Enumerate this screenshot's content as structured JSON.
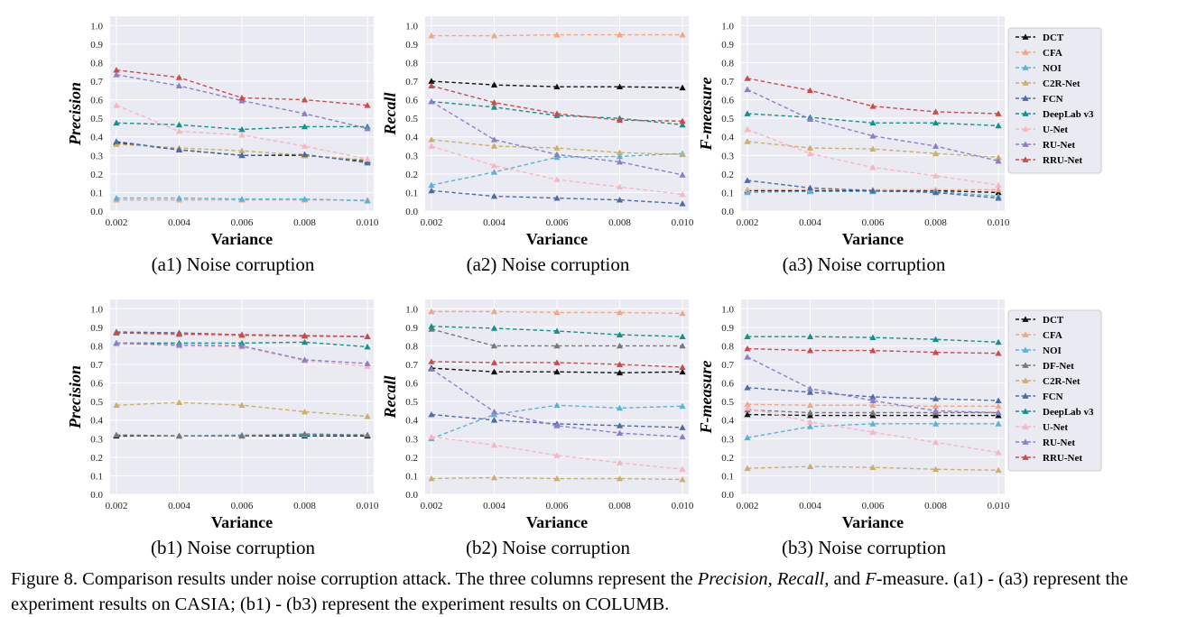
{
  "caption": {
    "prefix": "Figure 8. Comparison results under noise corruption attack. The three columns represent the ",
    "m1": "Precision",
    "sep1": ", ",
    "m2": "Recall",
    "sep2": ", and ",
    "m3": "F",
    "suffix": "-measure. (a1) - (a3) represent the experiment results on CASIA; (b1) - (b3) represent the experiment results on COLUMB."
  },
  "colors": {
    "DCT": "#111111",
    "CFA": "#f4a582",
    "NOI": "#5ab4d6",
    "DF-Net": "#777777",
    "C2R-Net": "#c9b06b",
    "FCN": "#4a6da7",
    "DeepLab v3": "#14928a",
    "U-Net": "#f7b6c2",
    "RU-Net": "#8b7fc9",
    "RRU-Net": "#cc4a4a",
    "panel_bg": "#eaeaf2",
    "grid": "#ffffff"
  },
  "chart_data": [
    {
      "id": "a1",
      "type": "line",
      "subcaption": "(a1) Noise corruption",
      "xlabel": "Variance",
      "ylabel": "Precision",
      "categories": [
        "0.002",
        "0.004",
        "0.006",
        "0.008",
        "0.010"
      ],
      "x": [
        0.002,
        0.004,
        0.006,
        0.008,
        0.01
      ],
      "xlim": [
        0.0018,
        0.0102
      ],
      "ylim": [
        0,
        1.05
      ],
      "yticks": [
        "0.0",
        "0.1",
        "0.2",
        "0.3",
        "0.4",
        "0.5",
        "0.6",
        "0.7",
        "0.8",
        "0.9",
        "1.0"
      ],
      "series": [
        {
          "name": "DCT",
          "values": [
            0.37,
            0.33,
            0.3,
            0.3,
            0.27
          ]
        },
        {
          "name": "CFA",
          "values": [
            0.06,
            0.06,
            0.06,
            0.06,
            0.06
          ]
        },
        {
          "name": "NOI",
          "values": [
            0.07,
            0.07,
            0.065,
            0.065,
            0.055
          ]
        },
        {
          "name": "C2R-Net",
          "values": [
            0.36,
            0.34,
            0.325,
            0.3,
            0.275
          ]
        },
        {
          "name": "FCN",
          "values": [
            0.375,
            0.33,
            0.3,
            0.305,
            0.26
          ]
        },
        {
          "name": "DeepLab v3",
          "values": [
            0.475,
            0.465,
            0.44,
            0.455,
            0.455
          ]
        },
        {
          "name": "U-Net",
          "values": [
            0.57,
            0.43,
            0.41,
            0.35,
            0.28
          ]
        },
        {
          "name": "RU-Net",
          "values": [
            0.735,
            0.675,
            0.595,
            0.525,
            0.445
          ]
        },
        {
          "name": "RRU-Net",
          "values": [
            0.76,
            0.72,
            0.61,
            0.6,
            0.57
          ]
        }
      ]
    },
    {
      "id": "a2",
      "type": "line",
      "subcaption": "(a2) Noise corruption",
      "xlabel": "Variance",
      "ylabel": "Recall",
      "categories": [
        "0.002",
        "0.004",
        "0.006",
        "0.008",
        "0.010"
      ],
      "x": [
        0.002,
        0.004,
        0.006,
        0.008,
        0.01
      ],
      "xlim": [
        0.0018,
        0.0102
      ],
      "ylim": [
        0,
        1.05
      ],
      "yticks": [
        "0.0",
        "0.1",
        "0.2",
        "0.3",
        "0.4",
        "0.5",
        "0.6",
        "0.7",
        "0.8",
        "0.9",
        "1.0"
      ],
      "series": [
        {
          "name": "DCT",
          "values": [
            0.7,
            0.68,
            0.67,
            0.67,
            0.665
          ]
        },
        {
          "name": "CFA",
          "values": [
            0.945,
            0.945,
            0.95,
            0.95,
            0.95
          ]
        },
        {
          "name": "NOI",
          "values": [
            0.14,
            0.21,
            0.29,
            0.295,
            0.31
          ]
        },
        {
          "name": "C2R-Net",
          "values": [
            0.385,
            0.35,
            0.34,
            0.315,
            0.305
          ]
        },
        {
          "name": "FCN",
          "values": [
            0.11,
            0.08,
            0.07,
            0.06,
            0.04
          ]
        },
        {
          "name": "DeepLab v3",
          "values": [
            0.59,
            0.56,
            0.515,
            0.5,
            0.465
          ]
        },
        {
          "name": "U-Net",
          "values": [
            0.35,
            0.245,
            0.17,
            0.13,
            0.09
          ]
        },
        {
          "name": "RU-Net",
          "values": [
            0.59,
            0.385,
            0.305,
            0.265,
            0.195
          ]
        },
        {
          "name": "RRU-Net",
          "values": [
            0.675,
            0.585,
            0.525,
            0.49,
            0.485
          ]
        }
      ]
    },
    {
      "id": "a3",
      "type": "line",
      "subcaption": "(a3) Noise corruption",
      "xlabel": "Variance",
      "ylabel": "F-measure",
      "categories": [
        "0.002",
        "0.004",
        "0.006",
        "0.008",
        "0.010"
      ],
      "x": [
        0.002,
        0.004,
        0.006,
        0.008,
        0.01
      ],
      "xlim": [
        0.0018,
        0.0102
      ],
      "ylim": [
        0,
        1.05
      ],
      "yticks": [
        "0.0",
        "0.1",
        "0.2",
        "0.3",
        "0.4",
        "0.5",
        "0.6",
        "0.7",
        "0.8",
        "0.9",
        "1.0"
      ],
      "legend": [
        "DCT",
        "CFA",
        "NOI",
        "C2R-Net",
        "FCN",
        "DeepLab v3",
        "U-Net",
        "RU-Net",
        "RRU-Net"
      ],
      "series": [
        {
          "name": "DCT",
          "values": [
            0.11,
            0.11,
            0.11,
            0.11,
            0.1
          ]
        },
        {
          "name": "CFA",
          "values": [
            0.115,
            0.115,
            0.115,
            0.115,
            0.115
          ]
        },
        {
          "name": "NOI",
          "values": [
            0.1,
            0.105,
            0.105,
            0.105,
            0.08
          ]
        },
        {
          "name": "C2R-Net",
          "values": [
            0.375,
            0.34,
            0.335,
            0.31,
            0.29
          ]
        },
        {
          "name": "FCN",
          "values": [
            0.165,
            0.125,
            0.11,
            0.1,
            0.07
          ]
        },
        {
          "name": "DeepLab v3",
          "values": [
            0.525,
            0.505,
            0.475,
            0.475,
            0.46
          ]
        },
        {
          "name": "U-Net",
          "values": [
            0.44,
            0.31,
            0.235,
            0.19,
            0.14
          ]
        },
        {
          "name": "RU-Net",
          "values": [
            0.655,
            0.495,
            0.405,
            0.35,
            0.27
          ]
        },
        {
          "name": "RRU-Net",
          "values": [
            0.715,
            0.65,
            0.565,
            0.535,
            0.525
          ]
        }
      ]
    },
    {
      "id": "b1",
      "type": "line",
      "subcaption": "(b1) Noise corruption",
      "xlabel": "Variance",
      "ylabel": "Precision",
      "categories": [
        "0.002",
        "0.004",
        "0.006",
        "0.008",
        "0.010"
      ],
      "x": [
        0.002,
        0.004,
        0.006,
        0.008,
        0.01
      ],
      "xlim": [
        0.0018,
        0.0102
      ],
      "ylim": [
        0,
        1.05
      ],
      "yticks": [
        "0.0",
        "0.1",
        "0.2",
        "0.3",
        "0.4",
        "0.5",
        "0.6",
        "0.7",
        "0.8",
        "0.9",
        "1.0"
      ],
      "series": [
        {
          "name": "DCT",
          "values": [
            0.315,
            0.315,
            0.315,
            0.315,
            0.315
          ]
        },
        {
          "name": "CFA",
          "values": [
            0.87,
            0.86,
            0.855,
            0.85,
            0.85
          ]
        },
        {
          "name": "NOI",
          "values": [
            0.32,
            0.315,
            0.32,
            0.32,
            0.32
          ]
        },
        {
          "name": "DF-Net",
          "values": [
            0.32,
            0.315,
            0.315,
            0.325,
            0.32
          ]
        },
        {
          "name": "C2R-Net",
          "values": [
            0.48,
            0.495,
            0.48,
            0.445,
            0.42
          ]
        },
        {
          "name": "FCN",
          "values": [
            0.875,
            0.87,
            0.86,
            0.855,
            0.85
          ]
        },
        {
          "name": "DeepLab v3",
          "values": [
            0.815,
            0.815,
            0.815,
            0.82,
            0.795
          ]
        },
        {
          "name": "U-Net",
          "values": [
            0.81,
            0.8,
            0.795,
            0.72,
            0.69
          ]
        },
        {
          "name": "RU-Net",
          "values": [
            0.815,
            0.805,
            0.8,
            0.725,
            0.705
          ]
        },
        {
          "name": "RRU-Net",
          "values": [
            0.87,
            0.865,
            0.86,
            0.855,
            0.85
          ]
        }
      ]
    },
    {
      "id": "b2",
      "type": "line",
      "subcaption": "(b2) Noise corruption",
      "xlabel": "Variance",
      "ylabel": "Recall",
      "categories": [
        "0.002",
        "0.004",
        "0.006",
        "0.008",
        "0.010"
      ],
      "x": [
        0.002,
        0.004,
        0.006,
        0.008,
        0.01
      ],
      "xlim": [
        0.0018,
        0.0102
      ],
      "ylim": [
        0,
        1.05
      ],
      "yticks": [
        "0.0",
        "0.1",
        "0.2",
        "0.3",
        "0.4",
        "0.5",
        "0.6",
        "0.7",
        "0.8",
        "0.9",
        "1.0"
      ],
      "series": [
        {
          "name": "DCT",
          "values": [
            0.68,
            0.66,
            0.66,
            0.655,
            0.66
          ]
        },
        {
          "name": "CFA",
          "values": [
            0.985,
            0.985,
            0.98,
            0.98,
            0.975
          ]
        },
        {
          "name": "NOI",
          "values": [
            0.3,
            0.43,
            0.48,
            0.465,
            0.475
          ]
        },
        {
          "name": "DF-Net",
          "values": [
            0.89,
            0.8,
            0.8,
            0.8,
            0.8
          ]
        },
        {
          "name": "C2R-Net",
          "values": [
            0.085,
            0.09,
            0.085,
            0.085,
            0.08
          ]
        },
        {
          "name": "FCN",
          "values": [
            0.43,
            0.4,
            0.38,
            0.37,
            0.36
          ]
        },
        {
          "name": "DeepLab v3",
          "values": [
            0.905,
            0.895,
            0.88,
            0.86,
            0.85
          ]
        },
        {
          "name": "U-Net",
          "values": [
            0.31,
            0.265,
            0.21,
            0.17,
            0.135
          ]
        },
        {
          "name": "RU-Net",
          "values": [
            0.675,
            0.445,
            0.37,
            0.33,
            0.31
          ]
        },
        {
          "name": "RRU-Net",
          "values": [
            0.715,
            0.71,
            0.71,
            0.7,
            0.685
          ]
        }
      ]
    },
    {
      "id": "b3",
      "type": "line",
      "subcaption": "(b3) Noise corruption",
      "xlabel": "Variance",
      "ylabel": "F-measure",
      "categories": [
        "0.002",
        "0.004",
        "0.006",
        "0.008",
        "0.010"
      ],
      "x": [
        0.002,
        0.004,
        0.006,
        0.008,
        0.01
      ],
      "xlim": [
        0.0018,
        0.0102
      ],
      "ylim": [
        0,
        1.05
      ],
      "yticks": [
        "0.0",
        "0.1",
        "0.2",
        "0.3",
        "0.4",
        "0.5",
        "0.6",
        "0.7",
        "0.8",
        "0.9",
        "1.0"
      ],
      "legend": [
        "DCT",
        "CFA",
        "NOI",
        "DF-Net",
        "C2R-Net",
        "FCN",
        "DeepLab v3",
        "U-Net",
        "RU-Net",
        "RRU-Net"
      ],
      "series": [
        {
          "name": "DCT",
          "values": [
            0.43,
            0.425,
            0.425,
            0.425,
            0.425
          ]
        },
        {
          "name": "CFA",
          "values": [
            0.485,
            0.48,
            0.48,
            0.475,
            0.475
          ]
        },
        {
          "name": "NOI",
          "values": [
            0.305,
            0.365,
            0.38,
            0.38,
            0.38
          ]
        },
        {
          "name": "DF-Net",
          "values": [
            0.455,
            0.44,
            0.44,
            0.44,
            0.44
          ]
        },
        {
          "name": "C2R-Net",
          "values": [
            0.14,
            0.15,
            0.145,
            0.135,
            0.13
          ]
        },
        {
          "name": "FCN",
          "values": [
            0.575,
            0.55,
            0.525,
            0.515,
            0.505
          ]
        },
        {
          "name": "DeepLab v3",
          "values": [
            0.85,
            0.85,
            0.845,
            0.835,
            0.82
          ]
        },
        {
          "name": "U-Net",
          "values": [
            0.465,
            0.39,
            0.335,
            0.28,
            0.225
          ]
        },
        {
          "name": "RU-Net",
          "values": [
            0.74,
            0.57,
            0.505,
            0.45,
            0.44
          ]
        },
        {
          "name": "RRU-Net",
          "values": [
            0.785,
            0.775,
            0.775,
            0.765,
            0.76
          ]
        }
      ]
    }
  ]
}
